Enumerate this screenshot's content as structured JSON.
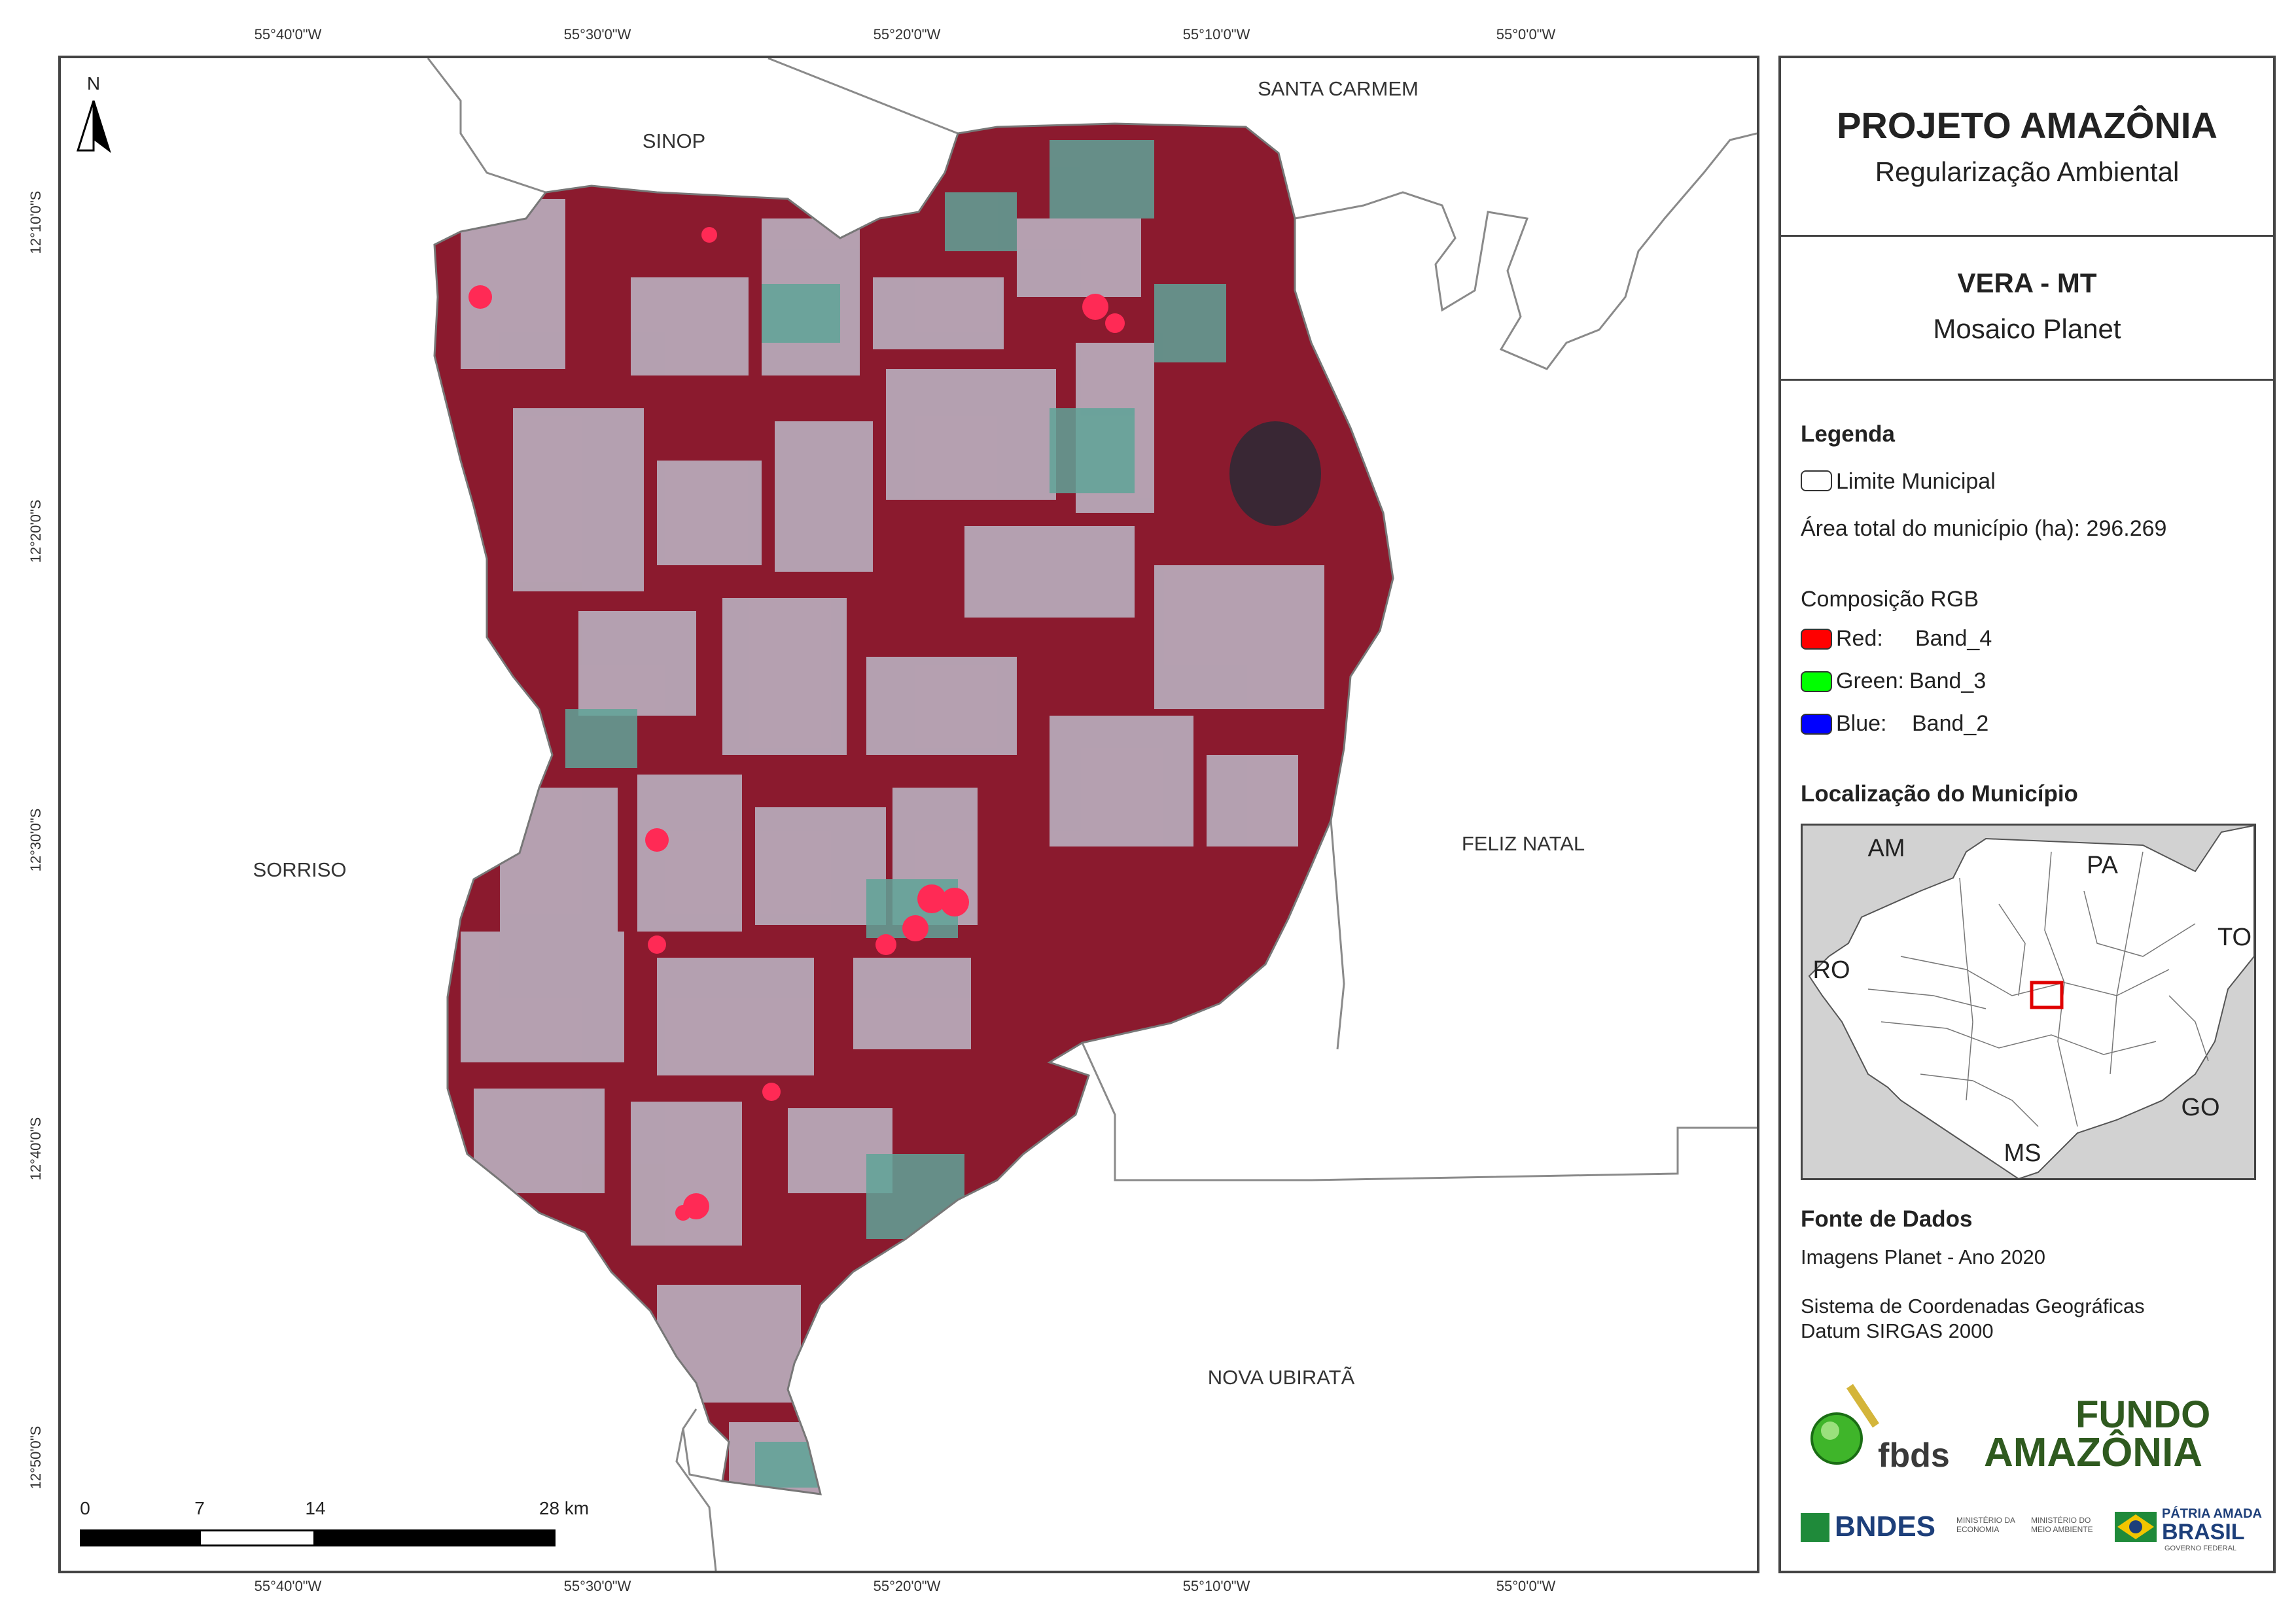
{
  "coordinates": {
    "top": [
      "55°40'0\"W",
      "55°30'0\"W",
      "55°20'0\"W",
      "55°10'0\"W",
      "55°0'0\"W"
    ],
    "bottom": [
      "55°40'0\"W",
      "55°30'0\"W",
      "55°20'0\"W",
      "55°10'0\"W",
      "55°0'0\"W"
    ],
    "left": [
      "12°10'0\"S",
      "12°20'0\"S",
      "12°30'0\"S",
      "12°40'0\"S",
      "12°50'0\"S"
    ]
  },
  "map": {
    "north_label": "N",
    "places": [
      "SINOP",
      "SANTA CARMEM",
      "SORRISO",
      "FELIZ NATAL",
      "NOVA UBIRATÃ"
    ],
    "scale": {
      "labels": [
        "0",
        "7",
        "14",
        "28 km"
      ]
    },
    "colors": {
      "forest": "#8b1a2e",
      "crop": "#b8a9b8",
      "boundary": "#777777"
    }
  },
  "panel": {
    "title": "PROJETO AMAZÔNIA",
    "subtitle": "Regularização Ambiental",
    "municipality": "VERA - MT",
    "mosaic": "Mosaico Planet",
    "legend": {
      "heading": "Legenda",
      "limit_label": "Limite Municipal",
      "area_label": "Área total do município (ha): 296.269",
      "rgb_heading": "Composição RGB",
      "bands": [
        {
          "name": "Red:",
          "value": "Band_4",
          "color": "#ff0000"
        },
        {
          "name": "Green:",
          "value": "Band_3",
          "color": "#00ff00"
        },
        {
          "name": "Blue:",
          "value": "Band_2",
          "color": "#0000ff"
        }
      ]
    },
    "location": {
      "heading": "Localização do Município",
      "states": [
        "AM",
        "PA",
        "TO",
        "RO",
        "GO",
        "MS"
      ]
    },
    "sources": {
      "heading": "Fonte de Dados",
      "images": "Imagens Planet - Ano 2020",
      "crs_line1": "Sistema de Coordenadas Geográficas",
      "crs_line2": "Datum SIRGAS 2000"
    },
    "logos": {
      "fbds": "fbds",
      "fundo_line1": "FUNDO",
      "fundo_line2": "AMAZÔNIA",
      "bndes": "BNDES",
      "ministerio_economia": "MINISTÉRIO DA ECONOMIA",
      "ministerio_meio_ambiente": "MINISTÉRIO DO MEIO AMBIENTE",
      "patria_line1": "PÁTRIA AMADA",
      "patria_line2": "BRASIL",
      "governo": "GOVERNO FEDERAL"
    }
  }
}
